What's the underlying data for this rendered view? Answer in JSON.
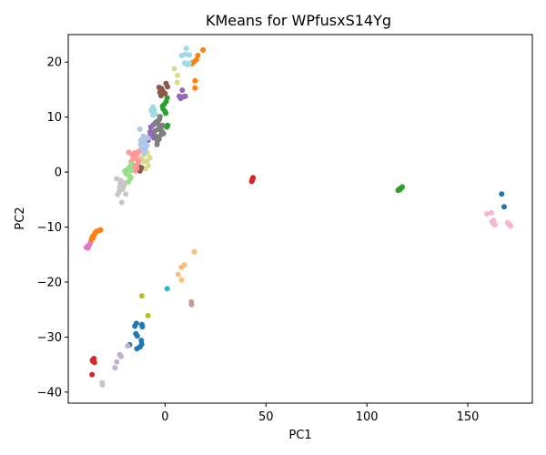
{
  "chart_data": {
    "type": "scatter",
    "title": "KMeans for WPfusxS14Yg",
    "xlabel": "PC1",
    "ylabel": "PC2",
    "xlim": [
      -48,
      182
    ],
    "ylim": [
      -42,
      25
    ],
    "xticks": [
      0,
      50,
      100,
      150
    ],
    "yticks": [
      -40,
      -30,
      -20,
      -10,
      0,
      10,
      20
    ],
    "grid": false,
    "legend": "none",
    "clusters": [
      {
        "color": "#d62728",
        "points": [
          [
            43.4,
            -1.2
          ],
          [
            43.1,
            -1.5
          ],
          [
            42.9,
            -1.7
          ],
          [
            43.6,
            -1.0
          ],
          [
            43.2,
            -1.4
          ],
          [
            -36.0,
            -34.2
          ],
          [
            -35.3,
            -33.9
          ],
          [
            -35.0,
            -34.6
          ],
          [
            -35.8,
            -34.4
          ],
          [
            -36.2,
            -36.8
          ],
          [
            -35.5,
            -34.1
          ]
        ]
      },
      {
        "color": "#2ca02c",
        "points": [
          [
            115.5,
            -3.3
          ],
          [
            116.0,
            -3.1
          ],
          [
            116.5,
            -3.0
          ],
          [
            117.0,
            -2.9
          ],
          [
            117.5,
            -2.7
          ],
          [
            116.3,
            -3.2
          ],
          [
            -1.0,
            11.5
          ],
          [
            -0.5,
            12.3
          ],
          [
            0.0,
            11.0
          ],
          [
            0.5,
            12.8
          ],
          [
            1.0,
            13.5
          ],
          [
            -1.3,
            12.0
          ],
          [
            0.3,
            10.7
          ],
          [
            1.3,
            8.5
          ],
          [
            0.8,
            8.2
          ]
        ]
      },
      {
        "color": "#1f77b4",
        "points": [
          [
            166.8,
            -4.0
          ],
          [
            168.0,
            -6.3
          ],
          [
            -15.0,
            -28.0
          ],
          [
            -14.2,
            -27.5
          ],
          [
            -11.5,
            -27.7
          ],
          [
            -11.3,
            -28.1
          ],
          [
            -14.5,
            -29.4
          ],
          [
            -13.8,
            -29.8
          ],
          [
            -11.8,
            -30.6
          ],
          [
            -11.6,
            -31.3
          ],
          [
            -14.0,
            -32.1
          ],
          [
            -12.5,
            -31.8
          ],
          [
            -17.6,
            -31.4
          ]
        ]
      },
      {
        "color": "#f7b6d2",
        "points": [
          [
            159.5,
            -7.6
          ],
          [
            161.7,
            -7.4
          ],
          [
            162.0,
            -9.0
          ],
          [
            162.5,
            -9.3
          ],
          [
            163.4,
            -9.6
          ],
          [
            162.8,
            -8.8
          ],
          [
            170.5,
            -9.5
          ],
          [
            171.2,
            -9.8
          ],
          [
            169.8,
            -9.2
          ]
        ]
      },
      {
        "color": "#e377c2",
        "points": [
          [
            -39.0,
            -13.7
          ],
          [
            -38.5,
            -13.5
          ],
          [
            -38.0,
            -13.4
          ],
          [
            -37.5,
            -13.2
          ],
          [
            -37.0,
            -12.8
          ],
          [
            -38.2,
            -13.8
          ]
        ]
      },
      {
        "color": "#ff7f0e",
        "points": [
          [
            -36.5,
            -12.2
          ],
          [
            -36.0,
            -11.8
          ],
          [
            -35.5,
            -11.6
          ],
          [
            -35.0,
            -11.3
          ],
          [
            -34.5,
            -11.0
          ],
          [
            -34.0,
            -10.8
          ],
          [
            -33.3,
            -10.7
          ],
          [
            -32.5,
            -10.6
          ],
          [
            -32.0,
            -10.5
          ],
          [
            -35.8,
            -12.0
          ],
          [
            14.0,
            20.0
          ],
          [
            15.5,
            20.4
          ],
          [
            16.2,
            21.2
          ],
          [
            18.8,
            22.2
          ],
          [
            14.8,
            16.6
          ],
          [
            14.8,
            15.3
          ],
          [
            13.2,
            19.7
          ]
        ]
      },
      {
        "color": "#9edae5",
        "points": [
          [
            10.5,
            22.5
          ],
          [
            10.0,
            21.4
          ],
          [
            12.1,
            21.3
          ],
          [
            8.2,
            21.2
          ],
          [
            9.7,
            19.8
          ],
          [
            11.0,
            19.5
          ],
          [
            12.0,
            19.8
          ],
          [
            -4.7,
            10.5
          ],
          [
            -5.4,
            11.3
          ],
          [
            -6.1,
            11.8
          ],
          [
            -6.9,
            11.2
          ],
          [
            -6.0,
            10.4
          ]
        ]
      },
      {
        "color": "#dbdb8d",
        "points": [
          [
            4.5,
            18.8
          ],
          [
            6.2,
            17.6
          ],
          [
            6.0,
            16.3
          ],
          [
            -9.0,
            2.0
          ],
          [
            -7.5,
            2.6
          ],
          [
            -8.3,
            1.2
          ],
          [
            -9.8,
            0.6
          ],
          [
            -10.8,
            1.9
          ],
          [
            -10.2,
            3.2
          ],
          [
            -8.8,
            3.5
          ],
          [
            -11.5,
            2.7
          ]
        ]
      },
      {
        "color": "#8c564b",
        "points": [
          [
            -3.0,
            15.4
          ],
          [
            -2.6,
            14.5
          ],
          [
            -1.8,
            15.2
          ],
          [
            -1.2,
            14.8
          ],
          [
            -2.0,
            13.9
          ],
          [
            0.5,
            16.1
          ],
          [
            0.0,
            14.3
          ],
          [
            1.2,
            15.5
          ],
          [
            -12.5,
            0.2
          ],
          [
            -11.8,
            0.8
          ],
          [
            -13.0,
            1.0
          ],
          [
            -12.2,
            0.5
          ]
        ]
      },
      {
        "color": "#9467bd",
        "points": [
          [
            7.0,
            13.8
          ],
          [
            7.7,
            13.4
          ],
          [
            9.0,
            13.7
          ],
          [
            10.0,
            13.8
          ],
          [
            8.5,
            14.9
          ],
          [
            -5.5,
            6.2
          ],
          [
            -6.3,
            7.1
          ],
          [
            -7.4,
            7.3
          ],
          [
            -8.0,
            6.4
          ],
          [
            -7.1,
            8.2
          ],
          [
            -5.8,
            8.6
          ],
          [
            -8.4,
            5.8
          ],
          [
            -6.6,
            6.8
          ]
        ]
      },
      {
        "color": "#7f7f7f",
        "points": [
          [
            -4.0,
            9.2
          ],
          [
            -3.2,
            8.7
          ],
          [
            -2.8,
            9.6
          ],
          [
            -2.3,
            8.0
          ],
          [
            -1.6,
            7.4
          ],
          [
            -0.8,
            7.0
          ],
          [
            -3.5,
            7.8
          ],
          [
            -4.5,
            6.5
          ],
          [
            -4.0,
            5.0
          ],
          [
            -3.0,
            6.0
          ],
          [
            -2.0,
            6.8
          ],
          [
            -3.8,
            5.6
          ],
          [
            -1.2,
            8.5
          ],
          [
            -5.0,
            7.5
          ],
          [
            -4.8,
            9.0
          ],
          [
            -2.5,
            10.1
          ]
        ]
      },
      {
        "color": "#aec7e8",
        "points": [
          [
            -12.5,
            7.8
          ],
          [
            -12.0,
            5.8
          ],
          [
            -11.0,
            5.2
          ],
          [
            -10.2,
            5.6
          ],
          [
            -9.0,
            4.8
          ],
          [
            -11.5,
            4.3
          ],
          [
            -12.8,
            3.9
          ],
          [
            -10.5,
            3.5
          ],
          [
            -9.8,
            4.1
          ],
          [
            -12.2,
            5.0
          ],
          [
            -10.8,
            6.5
          ],
          [
            -8.5,
            6.2
          ]
        ]
      },
      {
        "color": "#ff9896",
        "points": [
          [
            -18.0,
            3.6
          ],
          [
            -16.5,
            3.3
          ],
          [
            -15.0,
            3.5
          ],
          [
            -14.0,
            3.2
          ],
          [
            -13.2,
            3.7
          ],
          [
            -15.8,
            2.6
          ],
          [
            -14.5,
            2.4
          ],
          [
            -16.8,
            1.9
          ],
          [
            -15.2,
            1.2
          ],
          [
            -14.0,
            0.7
          ],
          [
            -13.5,
            1.6
          ],
          [
            -14.8,
            0.2
          ],
          [
            -16.0,
            0.8
          ],
          [
            -13.0,
            2.1
          ]
        ]
      },
      {
        "color": "#98df8a",
        "points": [
          [
            -20.0,
            0.2
          ],
          [
            -18.5,
            0.5
          ],
          [
            -17.0,
            0.3
          ],
          [
            -18.0,
            -0.6
          ],
          [
            -17.3,
            -1.2
          ],
          [
            -18.3,
            -1.8
          ],
          [
            -17.6,
            0.9
          ],
          [
            -16.7,
            1.5
          ],
          [
            -19.3,
            -0.3
          ],
          [
            -17.0,
            -0.9
          ]
        ]
      },
      {
        "color": "#c7c7c7",
        "points": [
          [
            -24.0,
            -1.2
          ],
          [
            -22.0,
            -1.5
          ],
          [
            -21.5,
            -2.3
          ],
          [
            -22.5,
            -2.8
          ],
          [
            -21.0,
            -3.1
          ],
          [
            -22.8,
            -3.6
          ],
          [
            -23.5,
            -4.1
          ],
          [
            -20.5,
            -2.5
          ],
          [
            -19.5,
            -4.0
          ],
          [
            -21.5,
            -5.5
          ],
          [
            -20.0,
            -2.0
          ],
          [
            -22.2,
            -2.0
          ],
          [
            -31.0,
            -38.7
          ],
          [
            -31.2,
            -38.3
          ]
        ]
      },
      {
        "color": "#ffbb78",
        "points": [
          [
            14.5,
            -14.5
          ],
          [
            9.5,
            -16.9
          ],
          [
            8.0,
            -17.3
          ],
          [
            6.5,
            -18.6
          ],
          [
            8.2,
            -19.6
          ]
        ]
      },
      {
        "color": "#17becf",
        "points": [
          [
            1.0,
            -21.2
          ]
        ]
      },
      {
        "color": "#bcbd22",
        "points": [
          [
            -11.5,
            -22.5
          ],
          [
            -8.5,
            -26.1
          ]
        ]
      },
      {
        "color": "#c49c94",
        "points": [
          [
            13.0,
            -23.6
          ],
          [
            13.1,
            -24.1
          ]
        ]
      },
      {
        "color": "#c5b0d5",
        "points": [
          [
            -18.5,
            -31.6
          ],
          [
            -22.5,
            -33.2
          ],
          [
            -21.8,
            -33.5
          ],
          [
            -24.0,
            -34.5
          ],
          [
            -24.8,
            -35.6
          ]
        ]
      }
    ]
  }
}
